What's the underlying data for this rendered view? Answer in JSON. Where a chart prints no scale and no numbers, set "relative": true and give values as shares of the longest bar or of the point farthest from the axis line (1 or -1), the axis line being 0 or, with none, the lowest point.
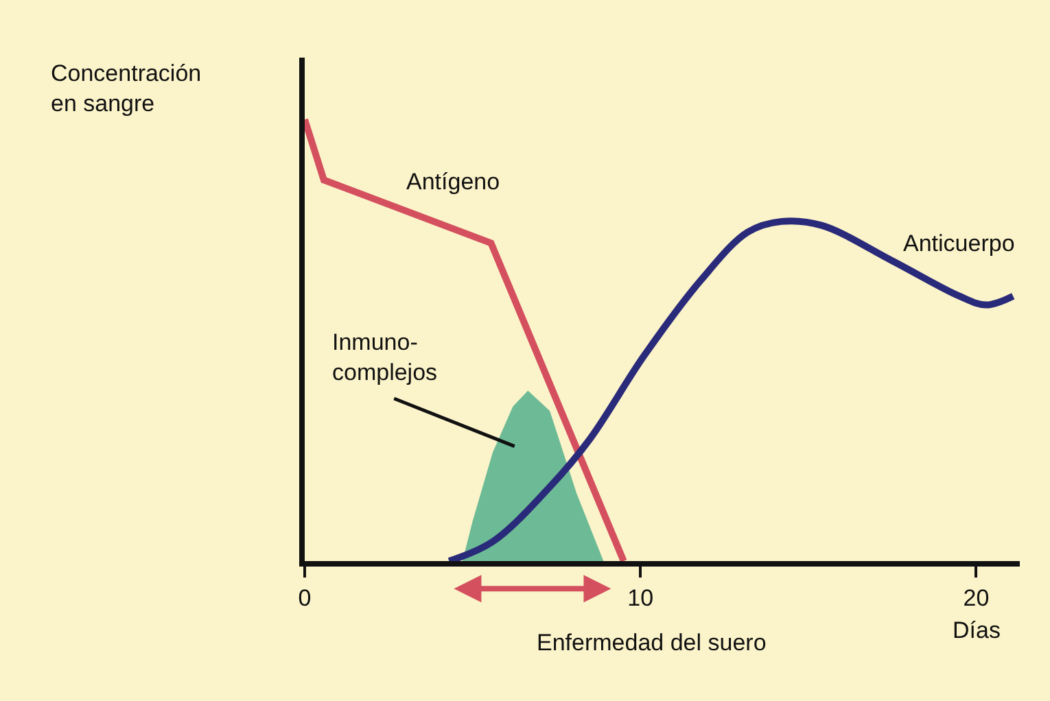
{
  "chart_data": {
    "type": "line",
    "relative": true,
    "xlabel": "Días",
    "ylabel": "Concentración en sangre",
    "xlim": [
      0,
      21.3
    ],
    "xticks": [
      0,
      10,
      20
    ],
    "grid": false,
    "legend": false,
    "marker": "none",
    "line_style": "solid",
    "series": [
      {
        "name": "Inmuno-\ncomplejos",
        "type": "area",
        "color": "#6dbb96",
        "x": [
          4.7,
          5.0,
          5.6,
          6.2,
          6.65,
          7.3,
          8.1,
          8.9
        ],
        "values": [
          0,
          0.09,
          0.246,
          0.35,
          0.386,
          0.34,
          0.153,
          0
        ]
      },
      {
        "name": "Antígeno",
        "color": "#d4505f",
        "x": [
          0,
          0.57,
          5.55,
          9.5
        ],
        "values": [
          1.0,
          0.863,
          0.72,
          0
        ]
      },
      {
        "name": "Anticuerpo",
        "color": "#2a2a7a",
        "x": [
          4.3,
          5.6,
          7.3,
          8.5,
          10.1,
          11.8,
          13.2,
          14.2,
          15.4,
          17.5,
          19.5,
          20.3,
          21.1
        ],
        "values": [
          0,
          0.044,
          0.168,
          0.277,
          0.464,
          0.636,
          0.745,
          0.769,
          0.76,
          0.68,
          0.6,
          0.58,
          0.6
        ]
      }
    ],
    "annotations": [
      "Enfermedad del suero"
    ]
  }
}
